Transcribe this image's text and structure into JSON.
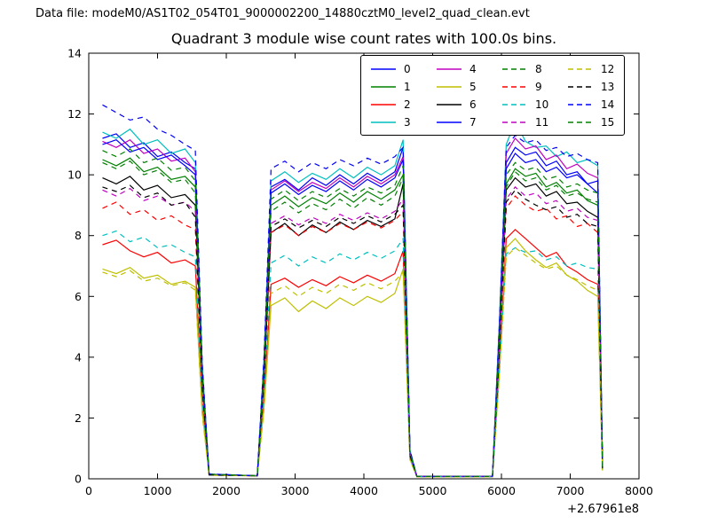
{
  "header": {
    "text": "Data file: modeM0/AS1T02_054T01_9000002200_14880cztM0_level2_quad_clean.evt"
  },
  "chart_data": {
    "type": "line",
    "title": "Quadrant 3 module wise count rates with 100.0s bins.",
    "xlabel": "",
    "ylabel": "",
    "xlim": [
      0,
      8000
    ],
    "ylim": [
      0,
      14
    ],
    "xticks": [
      0,
      1000,
      2000,
      3000,
      4000,
      5000,
      6000,
      7000,
      8000
    ],
    "yticks": [
      0,
      2,
      4,
      6,
      8,
      10,
      12,
      14
    ],
    "x_offset_text": "+2.67961e8",
    "grid": false,
    "legend_position": "upper center-right",
    "legend_columns": 4,
    "x": [
      200,
      400,
      600,
      800,
      1000,
      1200,
      1400,
      1550,
      1650,
      1750,
      2450,
      2550,
      2650,
      2850,
      3050,
      3250,
      3450,
      3650,
      3850,
      4050,
      4250,
      4450,
      4570,
      4670,
      4770,
      5870,
      5970,
      6070,
      6200,
      6350,
      6500,
      6650,
      6800,
      6950,
      7100,
      7250,
      7400,
      7470
    ],
    "series": [
      {
        "name": "0",
        "color": "#0000ff",
        "dash": false,
        "y": [
          11.2,
          11.35,
          10.9,
          11.05,
          10.6,
          10.75,
          10.4,
          10.2,
          3.6,
          0.15,
          0.1,
          3.9,
          9.6,
          9.85,
          9.5,
          9.9,
          9.65,
          10.0,
          9.7,
          10.05,
          9.8,
          10.1,
          10.9,
          0.9,
          0.08,
          0.08,
          4.9,
          10.4,
          10.9,
          10.65,
          10.75,
          10.3,
          10.45,
          10.0,
          10.1,
          9.7,
          9.4,
          0.4
        ]
      },
      {
        "name": "1",
        "color": "#008000",
        "dash": false,
        "y": [
          10.5,
          10.3,
          10.55,
          10.1,
          10.25,
          9.85,
          9.95,
          9.6,
          3.4,
          0.15,
          0.1,
          3.7,
          9.0,
          9.3,
          8.95,
          9.25,
          9.05,
          9.4,
          9.1,
          9.45,
          9.2,
          9.5,
          10.0,
          0.85,
          0.08,
          0.08,
          4.6,
          9.7,
          10.2,
          9.95,
          10.05,
          9.6,
          9.75,
          9.4,
          9.5,
          9.15,
          9.0,
          0.38
        ]
      },
      {
        "name": "2",
        "color": "#ff0000",
        "dash": false,
        "y": [
          7.7,
          7.85,
          7.5,
          7.3,
          7.45,
          7.1,
          7.2,
          7.0,
          2.5,
          0.12,
          0.1,
          2.7,
          6.4,
          6.6,
          6.3,
          6.55,
          6.35,
          6.65,
          6.45,
          6.7,
          6.5,
          6.75,
          7.5,
          0.7,
          0.07,
          0.07,
          3.7,
          7.9,
          8.2,
          7.9,
          7.6,
          7.3,
          7.45,
          7.0,
          6.8,
          6.55,
          6.4,
          0.3
        ]
      },
      {
        "name": "3",
        "color": "#00bfbf",
        "dash": false,
        "y": [
          11.4,
          11.2,
          11.5,
          11.0,
          11.15,
          10.7,
          10.85,
          10.4,
          3.7,
          0.15,
          0.1,
          4.0,
          9.8,
          10.1,
          9.75,
          10.05,
          9.85,
          10.2,
          9.9,
          10.25,
          10.0,
          10.3,
          11.15,
          0.95,
          0.08,
          0.08,
          5.2,
          11.0,
          11.75,
          11.1,
          10.9,
          10.95,
          10.6,
          10.75,
          10.4,
          10.5,
          10.3,
          0.42
        ]
      },
      {
        "name": "4",
        "color": "#bf00bf",
        "dash": false,
        "y": [
          11.1,
          10.9,
          11.15,
          10.7,
          10.85,
          10.45,
          10.55,
          10.1,
          3.5,
          0.15,
          0.1,
          3.85,
          9.5,
          9.8,
          9.45,
          9.75,
          9.55,
          9.9,
          9.6,
          9.95,
          9.7,
          10.0,
          10.6,
          0.9,
          0.08,
          0.08,
          5.0,
          10.7,
          11.2,
          10.85,
          10.95,
          10.5,
          10.65,
          10.2,
          10.35,
          10.05,
          9.9,
          0.4
        ]
      },
      {
        "name": "5",
        "color": "#bfbf00",
        "dash": false,
        "y": [
          6.9,
          6.75,
          6.95,
          6.6,
          6.7,
          6.4,
          6.5,
          6.3,
          2.2,
          0.12,
          0.1,
          2.4,
          5.7,
          5.95,
          5.5,
          5.85,
          5.6,
          5.95,
          5.7,
          6.0,
          5.8,
          6.1,
          6.9,
          0.65,
          0.07,
          0.07,
          3.5,
          7.6,
          7.9,
          7.5,
          7.2,
          6.95,
          7.1,
          6.7,
          6.5,
          6.2,
          6.0,
          0.28
        ]
      },
      {
        "name": "6",
        "color": "#000000",
        "dash": false,
        "y": [
          9.9,
          9.7,
          9.95,
          9.5,
          9.65,
          9.25,
          9.35,
          9.0,
          3.2,
          0.14,
          0.1,
          3.4,
          8.1,
          8.4,
          8.0,
          8.35,
          8.1,
          8.45,
          8.2,
          8.5,
          8.3,
          8.55,
          9.7,
          0.8,
          0.08,
          0.08,
          4.4,
          9.5,
          9.9,
          9.6,
          9.7,
          9.3,
          9.45,
          9.05,
          9.1,
          8.8,
          8.6,
          0.36
        ]
      },
      {
        "name": "7",
        "color": "#0000ff",
        "dash": false,
        "y": [
          11.0,
          11.15,
          10.75,
          10.9,
          10.5,
          10.65,
          10.3,
          10.0,
          3.5,
          0.15,
          0.1,
          3.8,
          9.4,
          9.7,
          9.35,
          9.65,
          9.45,
          9.8,
          9.5,
          9.85,
          9.6,
          9.9,
          10.5,
          0.88,
          0.08,
          0.08,
          4.8,
          10.2,
          10.7,
          10.4,
          10.5,
          10.1,
          10.25,
          9.9,
          10.0,
          9.7,
          9.8,
          0.4
        ]
      },
      {
        "name": "8",
        "color": "#008000",
        "dash": true,
        "y": [
          10.4,
          10.2,
          10.45,
          10.0,
          10.15,
          9.75,
          9.85,
          9.4,
          3.3,
          0.14,
          0.1,
          3.6,
          8.8,
          9.1,
          8.75,
          9.05,
          8.85,
          9.2,
          8.9,
          9.25,
          9.0,
          9.3,
          9.9,
          0.84,
          0.08,
          0.08,
          4.5,
          9.6,
          10.1,
          9.8,
          9.9,
          9.5,
          9.65,
          9.3,
          9.4,
          9.2,
          9.1,
          0.37
        ]
      },
      {
        "name": "9",
        "color": "#ff0000",
        "dash": true,
        "y": [
          8.9,
          9.1,
          8.7,
          8.85,
          8.5,
          8.65,
          8.35,
          8.2,
          2.9,
          0.13,
          0.1,
          3.3,
          8.1,
          8.35,
          8.0,
          8.3,
          8.1,
          8.4,
          8.2,
          8.45,
          8.25,
          8.5,
          8.8,
          0.75,
          0.08,
          0.08,
          4.1,
          8.9,
          9.3,
          9.0,
          8.8,
          8.9,
          8.55,
          8.65,
          8.3,
          8.4,
          8.1,
          0.33
        ]
      },
      {
        "name": "10",
        "color": "#00bfbf",
        "dash": true,
        "y": [
          8.0,
          8.15,
          7.8,
          7.95,
          7.6,
          7.7,
          7.45,
          7.3,
          2.6,
          0.12,
          0.1,
          2.9,
          7.1,
          7.35,
          7.0,
          7.3,
          7.1,
          7.4,
          7.2,
          7.45,
          7.25,
          7.5,
          7.9,
          0.7,
          0.07,
          0.07,
          3.6,
          7.4,
          7.6,
          7.45,
          7.5,
          7.2,
          7.3,
          7.0,
          7.1,
          6.95,
          6.9,
          0.3
        ]
      },
      {
        "name": "11",
        "color": "#bf00bf",
        "dash": true,
        "y": [
          9.5,
          9.3,
          9.55,
          9.15,
          9.3,
          9.0,
          9.1,
          8.8,
          3.1,
          0.13,
          0.1,
          3.4,
          8.4,
          8.65,
          8.35,
          8.6,
          8.4,
          8.7,
          8.5,
          8.75,
          8.55,
          8.8,
          9.2,
          0.78,
          0.08,
          0.08,
          4.3,
          9.2,
          9.6,
          9.3,
          9.4,
          9.05,
          9.15,
          8.8,
          8.9,
          8.6,
          8.5,
          0.35
        ]
      },
      {
        "name": "12",
        "color": "#bfbf00",
        "dash": true,
        "y": [
          6.8,
          6.65,
          6.85,
          6.5,
          6.6,
          6.35,
          6.45,
          6.2,
          2.1,
          0.12,
          0.1,
          2.3,
          6.1,
          6.35,
          6.0,
          6.3,
          6.1,
          6.4,
          6.2,
          6.45,
          6.25,
          6.5,
          6.8,
          0.62,
          0.07,
          0.07,
          3.4,
          7.3,
          7.6,
          7.35,
          7.1,
          6.9,
          7.0,
          6.7,
          6.55,
          6.35,
          6.2,
          0.27
        ]
      },
      {
        "name": "13",
        "color": "#000000",
        "dash": true,
        "y": [
          9.6,
          9.45,
          9.65,
          9.25,
          9.4,
          9.0,
          9.1,
          8.6,
          3.0,
          0.13,
          0.1,
          3.3,
          8.3,
          8.55,
          8.25,
          8.5,
          8.3,
          8.6,
          8.4,
          8.65,
          8.45,
          8.7,
          9.0,
          0.76,
          0.08,
          0.08,
          4.2,
          9.1,
          9.5,
          9.2,
          9.0,
          8.85,
          8.95,
          8.6,
          8.7,
          8.4,
          8.3,
          0.34
        ]
      },
      {
        "name": "14",
        "color": "#0000ff",
        "dash": true,
        "y": [
          12.3,
          12.05,
          11.8,
          11.9,
          11.5,
          11.3,
          11.0,
          10.8,
          3.8,
          0.16,
          0.1,
          4.1,
          10.2,
          10.45,
          10.1,
          10.4,
          10.2,
          10.5,
          10.3,
          10.55,
          10.35,
          10.6,
          10.9,
          0.95,
          0.08,
          0.08,
          5.1,
          10.9,
          11.3,
          11.05,
          11.15,
          10.8,
          10.9,
          10.6,
          10.7,
          10.5,
          10.4,
          0.45
        ]
      },
      {
        "name": "15",
        "color": "#008000",
        "dash": true,
        "y": [
          10.8,
          10.6,
          10.85,
          10.4,
          10.55,
          10.15,
          10.25,
          9.8,
          3.45,
          0.15,
          0.1,
          3.75,
          9.2,
          9.5,
          9.15,
          9.45,
          9.25,
          9.55,
          9.3,
          9.6,
          9.4,
          9.65,
          10.3,
          0.86,
          0.08,
          0.08,
          4.7,
          10.0,
          10.4,
          10.15,
          10.25,
          9.85,
          9.95,
          9.6,
          9.7,
          9.5,
          9.4,
          0.38
        ]
      }
    ]
  }
}
